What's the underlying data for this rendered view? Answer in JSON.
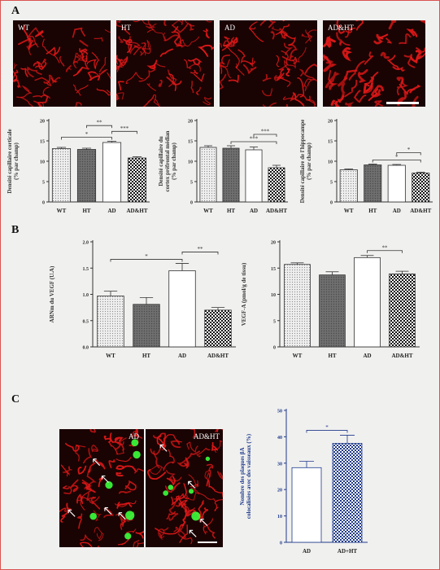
{
  "panels": {
    "a": "A",
    "b": "B",
    "c": "C"
  },
  "micrographs_a": [
    "WT",
    "HT",
    "AD",
    "AD&HT"
  ],
  "micrographs_c": [
    "AD",
    "AD&HT"
  ],
  "colors": {
    "vessel": "#e01818",
    "plaque": "#3cff3c",
    "background": "#1a0303",
    "bar_dark": "#6f6f6f",
    "bar_light": "#c8c8c8"
  },
  "chart_data": [
    {
      "type": "bar",
      "id": "a1",
      "categories": [
        "WT",
        "HT",
        "AD",
        "AD&HT"
      ],
      "values": [
        13.1,
        12.9,
        14.6,
        10.8
      ],
      "errors": [
        0.3,
        0.3,
        0.3,
        0.3
      ],
      "ylabel_lines": [
        "Densité capillaire corticale",
        "(% par champ)"
      ],
      "ylim": [
        0,
        20
      ],
      "yticks": [
        0,
        5,
        10,
        15,
        20
      ],
      "tick_labels": [
        "0",
        "5",
        "10",
        "15",
        "20"
      ],
      "significance": [
        {
          "from": 0,
          "to": 2,
          "label": "*"
        },
        {
          "from": 1,
          "to": 2,
          "label": "**"
        },
        {
          "from": 2,
          "to": 3,
          "label": "***"
        }
      ]
    },
    {
      "type": "bar",
      "id": "a2",
      "categories": [
        "WT",
        "HT",
        "AD",
        "AD&HT"
      ],
      "values": [
        13.4,
        13.2,
        12.8,
        8.4
      ],
      "errors": [
        0.4,
        0.6,
        0.7,
        0.6
      ],
      "ylabel_lines": [
        "Densité capillaire du",
        "cortex préfrontal médian",
        "(% par champ)"
      ],
      "ylim": [
        0,
        20
      ],
      "yticks": [
        0,
        5,
        10,
        15,
        20
      ],
      "tick_labels": [
        "0",
        "5",
        "10",
        "15",
        "20"
      ],
      "significance": [
        {
          "from": 1,
          "to": 3,
          "label": "***"
        },
        {
          "from": 2,
          "to": 3,
          "label": "***"
        }
      ]
    },
    {
      "type": "bar",
      "id": "a3",
      "categories": [
        "WT",
        "HT",
        "AD",
        "AD&HT"
      ],
      "values": [
        7.9,
        9.1,
        9.0,
        7.1
      ],
      "errors": [
        0.2,
        0.2,
        0.2,
        0.2
      ],
      "ylabel_lines": [
        "Densité capillaire de l'hippocampe",
        "(% par champ)"
      ],
      "ylim": [
        0,
        20
      ],
      "yticks": [
        0,
        5,
        10,
        15,
        20
      ],
      "tick_labels": [
        "0",
        "5",
        "10",
        "15",
        "20"
      ],
      "significance": [
        {
          "from": 1,
          "to": 3,
          "label": "*"
        },
        {
          "from": 2,
          "to": 3,
          "label": "*"
        }
      ]
    },
    {
      "type": "bar",
      "id": "b1",
      "categories": [
        "WT",
        "HT",
        "AD",
        "AD&HT"
      ],
      "values": [
        0.97,
        0.81,
        1.45,
        0.7
      ],
      "errors": [
        0.09,
        0.13,
        0.14,
        0.05
      ],
      "ylabel_lines": [
        "ARNm du VEGF (U.A)"
      ],
      "ylim": [
        0,
        2.0
      ],
      "yticks": [
        0,
        0.5,
        1.0,
        1.5,
        2.0
      ],
      "tick_labels": [
        "0.0",
        "0.5",
        "1.0",
        "1.5",
        "2.0"
      ],
      "significance": [
        {
          "from": 0,
          "to": 2,
          "label": "*"
        },
        {
          "from": 2,
          "to": 3,
          "label": "**"
        }
      ]
    },
    {
      "type": "bar",
      "id": "b2",
      "categories": [
        "WT",
        "HT",
        "AD",
        "AD&HT"
      ],
      "values": [
        15.7,
        13.7,
        17.0,
        13.9
      ],
      "errors": [
        0.3,
        0.6,
        0.4,
        0.5
      ],
      "ylabel_lines": [
        "VEGF-A (pmol/g de tissu)"
      ],
      "ylim": [
        0,
        20
      ],
      "yticks": [
        0,
        5,
        10,
        15,
        20
      ],
      "tick_labels": [
        "0",
        "5",
        "10",
        "15",
        "20"
      ],
      "significance": [
        {
          "from": 2,
          "to": 3,
          "label": "**"
        }
      ]
    },
    {
      "type": "bar",
      "id": "c1",
      "categories": [
        "AD",
        "AD+HT"
      ],
      "values": [
        28.3,
        37.5
      ],
      "errors": [
        2.4,
        3.1
      ],
      "ylabel_lines": [
        "Nombre des plaques βA",
        "colocalisées avec des vaisseaux (%)"
      ],
      "ylim": [
        0,
        50
      ],
      "yticks": [
        0,
        10,
        20,
        30,
        40,
        50
      ],
      "tick_labels": [
        "0",
        "10",
        "20",
        "30",
        "40",
        "50"
      ],
      "significance": [
        {
          "from": 0,
          "to": 1,
          "label": "*"
        }
      ]
    }
  ]
}
